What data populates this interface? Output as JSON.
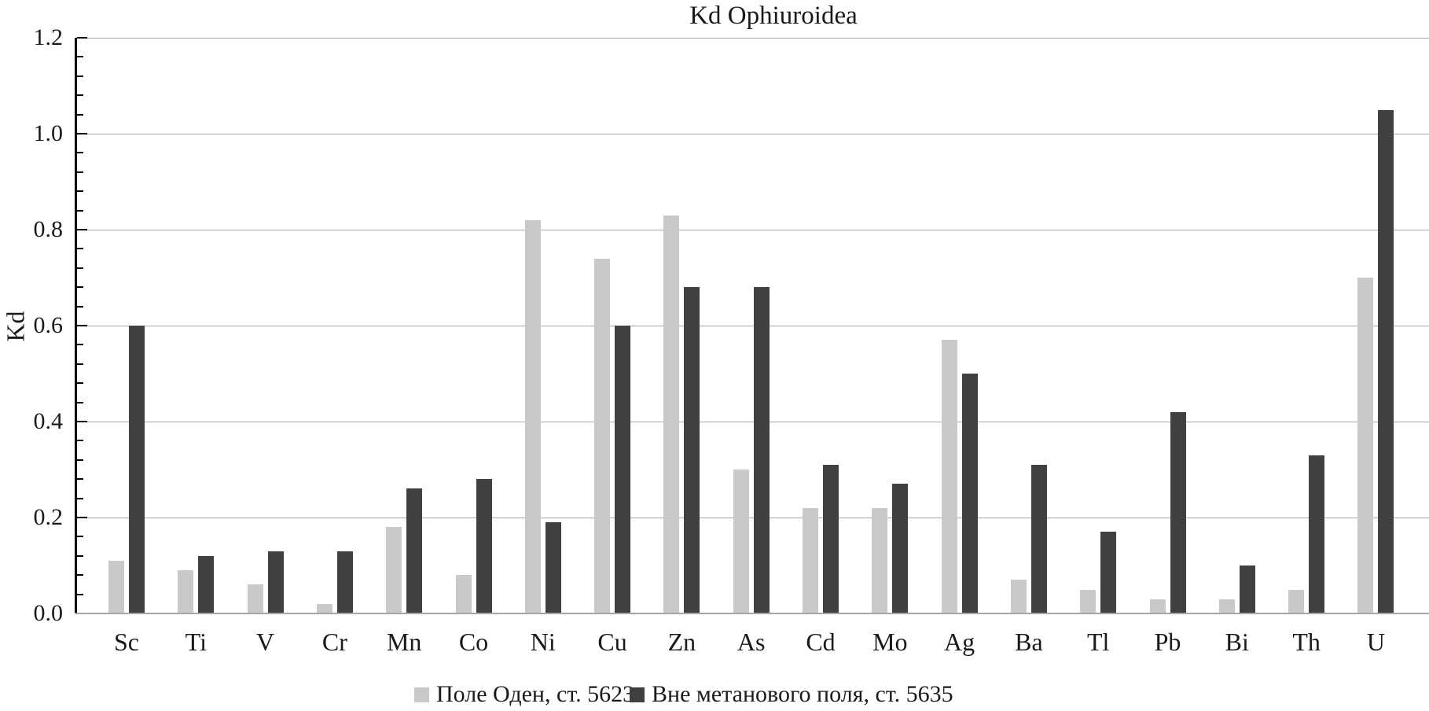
{
  "chart_data": {
    "type": "bar",
    "title": "Kd Ophiuroidea",
    "ylabel": "Kd",
    "categories": [
      "Sc",
      "Ti",
      "V",
      "Cr",
      "Mn",
      "Co",
      "Ni",
      "Cu",
      "Zn",
      "As",
      "Cd",
      "Mo",
      "Ag",
      "Ba",
      "Tl",
      "Pb",
      "Bi",
      "Th",
      "U"
    ],
    "series": [
      {
        "name": "Поле Оден, ст. 5623",
        "color": "#c9c9c9",
        "values": [
          0.11,
          0.09,
          0.06,
          0.02,
          0.18,
          0.08,
          0.82,
          0.74,
          0.83,
          0.3,
          0.22,
          0.22,
          0.57,
          0.07,
          0.05,
          0.03,
          0.03,
          0.05,
          0.7
        ]
      },
      {
        "name": "Вне метанового поля, ст. 5635",
        "color": "#404040",
        "values": [
          0.6,
          0.12,
          0.13,
          0.13,
          0.26,
          0.28,
          0.19,
          0.6,
          0.68,
          0.68,
          0.31,
          0.27,
          0.5,
          0.31,
          0.17,
          0.42,
          0.1,
          0.33,
          1.05
        ]
      }
    ],
    "ylim": [
      0,
      1.2
    ],
    "y_tick_labels": [
      "0.0",
      "0.2",
      "0.4",
      "0.6",
      "0.8",
      "1.0",
      "1.2"
    ],
    "y_minor_step": 0.04,
    "grid": true,
    "legend_position": "bottom"
  }
}
